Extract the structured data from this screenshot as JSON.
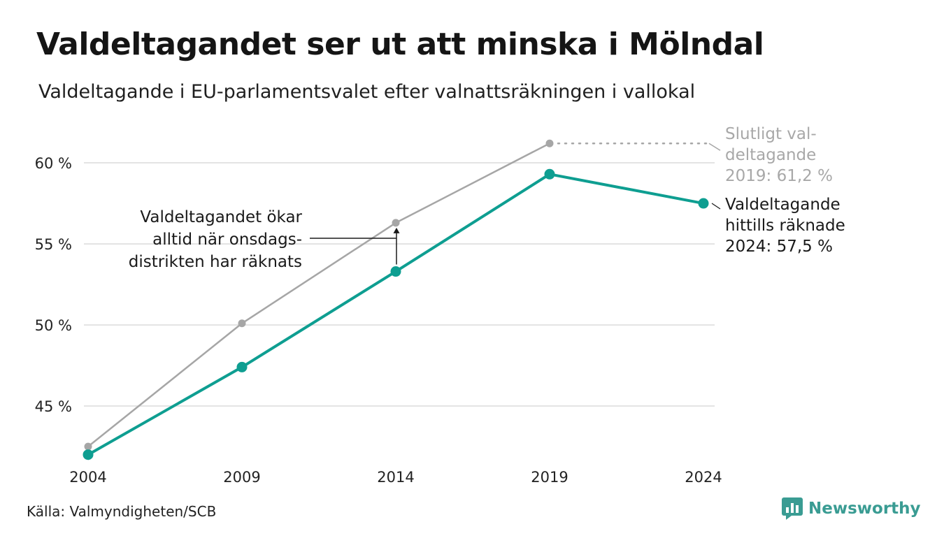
{
  "title": "Valdeltagandet ser ut att minska i Mölndal",
  "subtitle": "Valdeltagande i EU-parlamentsvalet efter valnattsräkningen i vallokal",
  "source": "Källa: Valmyndigheten/SCB",
  "logo": {
    "text": "Newsworthy",
    "icon": "bar-chart-logo-icon",
    "color": "#3a9c93"
  },
  "chart_data": {
    "type": "line",
    "x": [
      2004,
      2009,
      2014,
      2019,
      2024
    ],
    "xticks": [
      "2004",
      "2009",
      "2014",
      "2019",
      "2024"
    ],
    "yticks": [
      {
        "value": 45,
        "label": "45 %"
      },
      {
        "value": 50,
        "label": "50 %"
      },
      {
        "value": 55,
        "label": "55 %"
      },
      {
        "value": 60,
        "label": "60 %"
      }
    ],
    "ylim": [
      41.6,
      62.2
    ],
    "grid": true,
    "series": [
      {
        "key": "final",
        "color": "#a6a6a6",
        "x": [
          2004,
          2009,
          2014,
          2019
        ],
        "values": [
          42.5,
          50.1,
          56.3,
          61.2
        ]
      },
      {
        "key": "election_night",
        "color": "#0e9e91",
        "x": [
          2004,
          2009,
          2014,
          2019,
          2024
        ],
        "values": [
          42.0,
          47.4,
          53.3,
          59.3,
          57.5
        ]
      }
    ],
    "annotations": {
      "increase": [
        "Valdeltagandet ökar",
        "alltid när onsdags-",
        "distrikten har räknats"
      ],
      "final_2019": [
        "Slutligt val-",
        "deltagande",
        "2019: 61,2 %"
      ],
      "counted_2024": [
        "Valdeltagande",
        "hittills räknade",
        "2024: 57,5 %"
      ]
    }
  }
}
